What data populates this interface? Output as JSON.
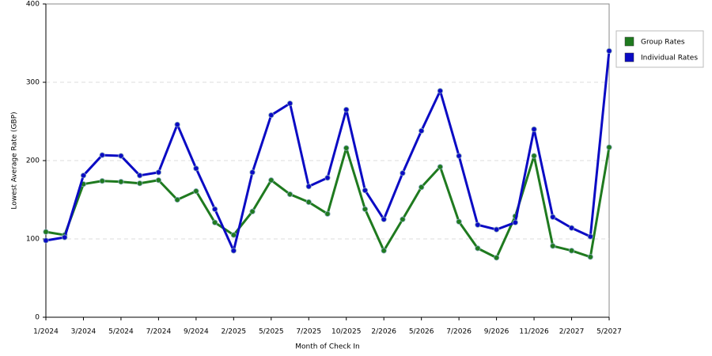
{
  "chart_data": {
    "type": "line",
    "x_label": "Month of Check In",
    "y_label": "Lowest Average Rate (GBP)",
    "categories": [
      "1/2024",
      null,
      "3/2024",
      null,
      "5/2024",
      null,
      "7/2024",
      null,
      "9/2024",
      null,
      "2/2025",
      null,
      "5/2025",
      null,
      "7/2025",
      null,
      "10/2025",
      null,
      "2/2026",
      null,
      "5/2026",
      null,
      "7/2026",
      null,
      "9/2026",
      null,
      "11/2026",
      null,
      "2/2027",
      null,
      "5/2027"
    ],
    "series": [
      {
        "name": "Group Rates",
        "color": "#1f7a1f",
        "values": [
          109,
          105,
          170,
          174,
          173,
          171,
          175,
          150,
          161,
          121,
          105,
          135,
          175,
          157,
          147,
          132,
          216,
          138,
          85,
          125,
          166,
          192,
          122,
          88,
          76,
          129,
          206,
          91,
          85,
          77,
          217
        ]
      },
      {
        "name": "Individual Rates",
        "color": "#0b0bc4",
        "values": [
          98,
          102,
          181,
          207,
          206,
          181,
          185,
          246,
          190,
          138,
          85,
          185,
          258,
          273,
          167,
          178,
          265,
          162,
          125,
          184,
          238,
          289,
          206,
          118,
          112,
          121,
          240,
          128,
          114,
          103,
          340
        ]
      }
    ],
    "ylim": [
      0,
      400
    ],
    "yticks": [
      0,
      100,
      200,
      300,
      400
    ],
    "grid": true,
    "legend": "right"
  }
}
